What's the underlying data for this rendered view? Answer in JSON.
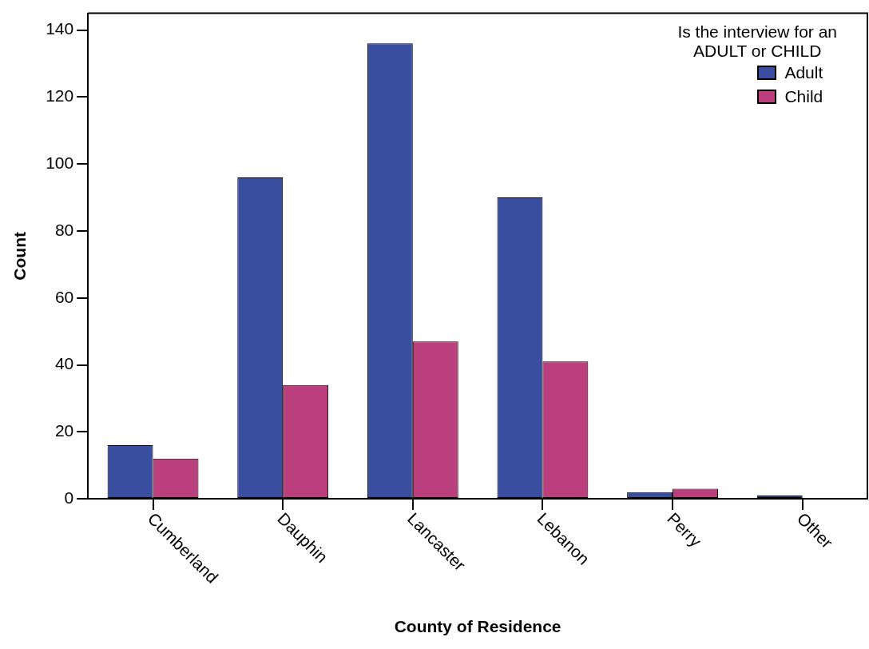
{
  "chart_data": {
    "type": "bar",
    "xlabel": "County of Residence",
    "ylabel": "Count",
    "legend_title": "Is the interview for an\nADULT or CHILD",
    "legend": "top right",
    "categories": [
      "Cumberland",
      "Dauphin",
      "Lancaster",
      "Lebanon",
      "Perry",
      "Other"
    ],
    "series": [
      {
        "name": "Adult",
        "color": "#3a4ea0",
        "values": [
          16,
          96,
          136,
          90,
          2,
          1
        ]
      },
      {
        "name": "Child",
        "color": "#bb3f7c",
        "values": [
          12,
          34,
          47,
          41,
          3,
          0
        ]
      }
    ],
    "ylim": [
      0,
      145
    ],
    "yticks": [
      0,
      20,
      40,
      60,
      80,
      100,
      120,
      140
    ],
    "grid": false
  }
}
